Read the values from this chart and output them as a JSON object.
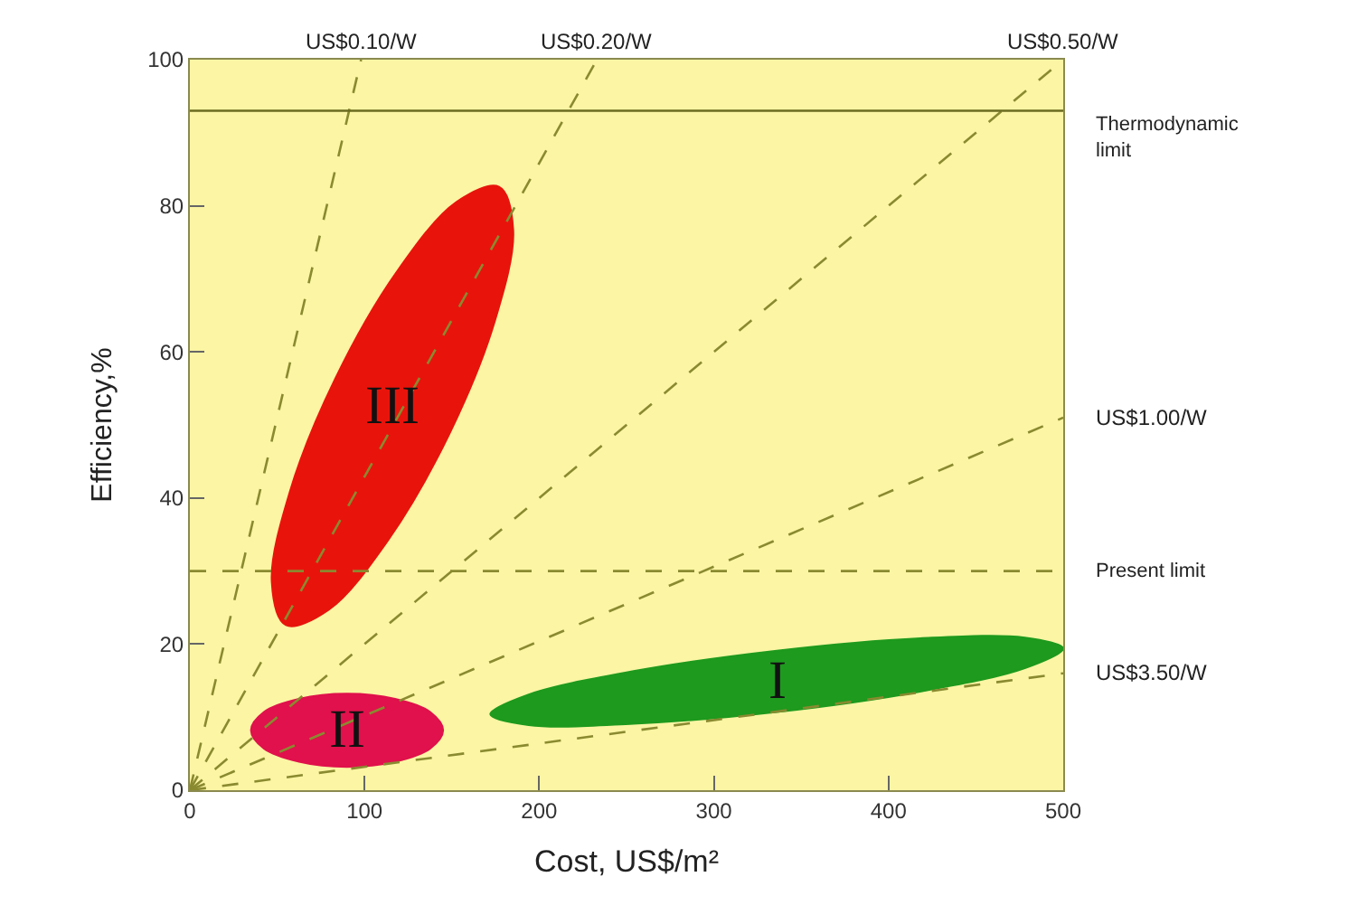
{
  "chart_data": {
    "type": "line",
    "xlabel": "Cost, US$/m²",
    "ylabel": "Efficiency,%",
    "xlim": [
      0,
      500
    ],
    "xticks": [
      0,
      100,
      200,
      300,
      400,
      500
    ],
    "ylim": [
      0,
      100
    ],
    "yticks": [
      0,
      20,
      40,
      60,
      80,
      100
    ],
    "grid": false,
    "legend": false,
    "marker": "none",
    "series": [
      {
        "type": "area",
        "name": "III",
        "color": "#e8140c",
        "x": [
          177,
          185.1,
          174.7,
          148.6,
          113.7,
          79.5,
          55,
          46.9,
          57.3,
          83.4,
          118.3,
          152.5,
          177
        ],
        "values": [
          82.6,
          76.7,
          64.3,
          48.8,
          34.3,
          24.7,
          22.6,
          28.5,
          40.9,
          56.4,
          70.9,
          80.5,
          82.6
        ]
      },
      {
        "type": "area",
        "name": "II",
        "color": "#e0114c",
        "x": [
          145,
          137.6,
          117.5,
          90,
          62.5,
          42.4,
          35,
          42.4,
          62.5,
          90,
          117.5,
          137.6,
          145
        ],
        "values": [
          8.2,
          10.7,
          12.5,
          13.2,
          12.5,
          10.7,
          8.2,
          5.7,
          3.9,
          3.2,
          3.9,
          5.7,
          8.2
        ]
      },
      {
        "type": "area",
        "name": "I",
        "color": "#1e9a1e",
        "x": [
          500,
          478,
          418,
          336,
          254,
          194,
          172,
          194,
          254,
          336,
          418,
          478,
          500
        ],
        "values": [
          19.4,
          20.9,
          20.8,
          19.1,
          16.3,
          13.1,
          10.4,
          8.9,
          9.1,
          10.7,
          13.5,
          16.7,
          19.4
        ]
      },
      {
        "name": "US$0.10/W",
        "color": "#8a8a30",
        "line_style": "dashed",
        "x": [
          0,
          98
        ],
        "values": [
          0,
          100
        ]
      },
      {
        "name": "US$0.20/W",
        "color": "#8a8a30",
        "line_style": "dashed",
        "x": [
          0,
          233
        ],
        "values": [
          0,
          100
        ]
      },
      {
        "name": "US$0.50/W",
        "color": "#8a8a30",
        "line_style": "dashed",
        "x": [
          0,
          500
        ],
        "values": [
          0,
          100
        ]
      },
      {
        "name": "US$1.00/W",
        "color": "#8a8a30",
        "line_style": "dashed",
        "x": [
          0,
          500
        ],
        "values": [
          0,
          51
        ]
      },
      {
        "name": "US$3.50/W",
        "color": "#8a8a30",
        "line_style": "dashed",
        "x": [
          0,
          500
        ],
        "values": [
          0,
          16
        ]
      }
    ],
    "ref_lines": [
      {
        "axis": "y",
        "value": 93,
        "label": "Thermodynamic\nlimit",
        "color": "#6b6b20",
        "line_style": "solid"
      },
      {
        "axis": "y",
        "value": 30,
        "label": "Present limit",
        "color": "#8a8a30",
        "line_style": "dashed"
      }
    ]
  }
}
